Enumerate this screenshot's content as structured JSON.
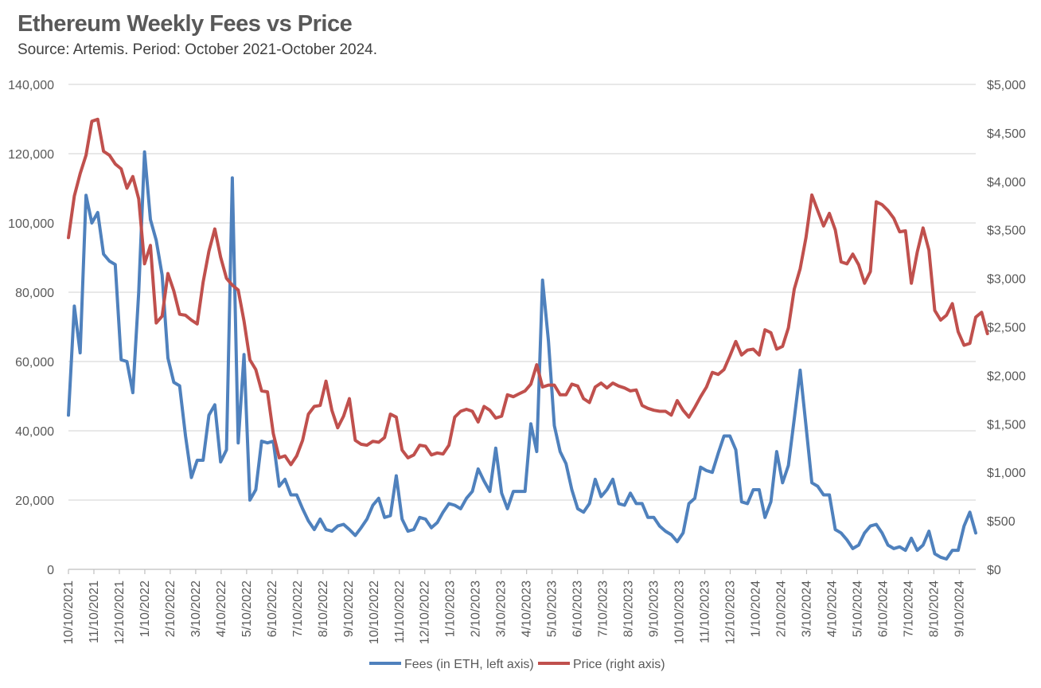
{
  "chart_data": {
    "type": "line",
    "title": "Ethereum Weekly Fees vs Price",
    "subtitle": "Source: Artemis. Period: October 2021-October 2024.",
    "x_tick_labels": [
      "10/10/2021",
      "11/10/2021",
      "12/10/2021",
      "1/10/2022",
      "2/10/2022",
      "3/10/2022",
      "4/10/2022",
      "5/10/2022",
      "6/10/2022",
      "7/10/2022",
      "8/10/2022",
      "9/10/2022",
      "10/10/2022",
      "11/10/2022",
      "12/10/2022",
      "1/10/2023",
      "2/10/2023",
      "3/10/2023",
      "4/10/2023",
      "5/10/2023",
      "6/10/2023",
      "7/10/2023",
      "8/10/2023",
      "9/10/2023",
      "10/10/2023",
      "11/10/2023",
      "12/10/2023",
      "1/10/2024",
      "2/10/2024",
      "3/10/2024",
      "4/10/2024",
      "5/10/2024",
      "6/10/2024",
      "7/10/2024",
      "8/10/2024",
      "9/10/2024"
    ],
    "y_left": {
      "ylim": [
        0,
        140000
      ],
      "ticks": [
        0,
        20000,
        40000,
        60000,
        80000,
        100000,
        120000,
        140000
      ],
      "tick_labels": [
        "0",
        "20,000",
        "40,000",
        "60,000",
        "80,000",
        "100,000",
        "120,000",
        "140,000"
      ]
    },
    "y_right": {
      "ylim": [
        0,
        5000
      ],
      "ticks": [
        0,
        500,
        1000,
        1500,
        2000,
        2500,
        3000,
        3500,
        4000,
        4500,
        5000
      ],
      "tick_labels": [
        "$0",
        "$500",
        "$1,000",
        "$1,500",
        "$2,000",
        "$2,500",
        "$3,000",
        "$3,500",
        "$4,000",
        "$4,500",
        "$5,000"
      ]
    },
    "grid": "horizontal",
    "legend_position": "bottom",
    "series": [
      {
        "name": "Fees (in ETH, left axis)",
        "axis": "left",
        "color": "#4F81BD",
        "values": [
          44500,
          76000,
          62500,
          108000,
          100000,
          103000,
          91000,
          89000,
          88000,
          60500,
          60000,
          51000,
          80000,
          120500,
          101000,
          95000,
          85000,
          61000,
          54000,
          53000,
          38500,
          26500,
          31500,
          31500,
          44500,
          47500,
          31000,
          34500,
          113000,
          36500,
          62000,
          20000,
          23000,
          37000,
          36500,
          37000,
          24000,
          26000,
          21500,
          21500,
          17500,
          14000,
          11500,
          14500,
          11500,
          11000,
          12500,
          13000,
          11500,
          9800,
          12000,
          14500,
          18500,
          20500,
          15000,
          15500,
          27000,
          14500,
          11000,
          11500,
          15000,
          14500,
          12000,
          13500,
          16500,
          19000,
          18500,
          17500,
          20500,
          22500,
          29000,
          25500,
          22500,
          35000,
          22000,
          17500,
          22500,
          22500,
          22500,
          42000,
          34000,
          83500,
          66000,
          41500,
          34000,
          30500,
          23000,
          17500,
          16500,
          19000,
          26000,
          21000,
          23000,
          26000,
          19000,
          18500,
          22000,
          19000,
          19000,
          15000,
          15000,
          12500,
          11000,
          10000,
          8000,
          10500,
          19000,
          20500,
          29500,
          28500,
          28000,
          33500,
          38500,
          38500,
          34500,
          19500,
          19000,
          23000,
          23000,
          15000,
          19500,
          34000,
          25000,
          30000,
          43500,
          57500,
          41500,
          25000,
          24000,
          21500,
          21500,
          11500,
          10500,
          8500,
          6000,
          7000,
          10500,
          12500,
          13000,
          10500,
          7000,
          6000,
          6500,
          5500,
          9000,
          5500,
          7000,
          11000,
          4500,
          3500,
          3000,
          5500,
          5500,
          12500,
          16500,
          10500
        ]
      },
      {
        "name": "Price (right axis)",
        "axis": "right",
        "color": "#C0504D",
        "values": [
          3420,
          3850,
          4080,
          4270,
          4620,
          4640,
          4310,
          4270,
          4180,
          4130,
          3930,
          4050,
          3820,
          3150,
          3340,
          2540,
          2610,
          3050,
          2870,
          2630,
          2620,
          2570,
          2530,
          2960,
          3280,
          3510,
          3220,
          3000,
          2930,
          2880,
          2560,
          2160,
          2060,
          1840,
          1830,
          1400,
          1150,
          1170,
          1080,
          1170,
          1330,
          1600,
          1680,
          1690,
          1940,
          1640,
          1460,
          1580,
          1760,
          1330,
          1290,
          1280,
          1320,
          1310,
          1360,
          1600,
          1570,
          1230,
          1150,
          1180,
          1280,
          1270,
          1180,
          1200,
          1190,
          1280,
          1570,
          1630,
          1650,
          1630,
          1520,
          1680,
          1640,
          1560,
          1580,
          1800,
          1780,
          1810,
          1840,
          1910,
          2110,
          1880,
          1900,
          1900,
          1800,
          1800,
          1910,
          1890,
          1760,
          1720,
          1880,
          1920,
          1870,
          1920,
          1890,
          1870,
          1840,
          1850,
          1690,
          1660,
          1640,
          1630,
          1630,
          1590,
          1740,
          1640,
          1570,
          1670,
          1780,
          1880,
          2030,
          2010,
          2060,
          2200,
          2350,
          2210,
          2260,
          2270,
          2210,
          2470,
          2440,
          2270,
          2300,
          2490,
          2890,
          3100,
          3420,
          3860,
          3700,
          3540,
          3670,
          3500,
          3170,
          3150,
          3250,
          3140,
          2950,
          3070,
          3790,
          3760,
          3700,
          3620,
          3480,
          3490,
          2950,
          3270,
          3520,
          3290,
          2670,
          2570,
          2620,
          2740,
          2450,
          2310,
          2330,
          2600,
          2650,
          2430
        ]
      }
    ]
  }
}
